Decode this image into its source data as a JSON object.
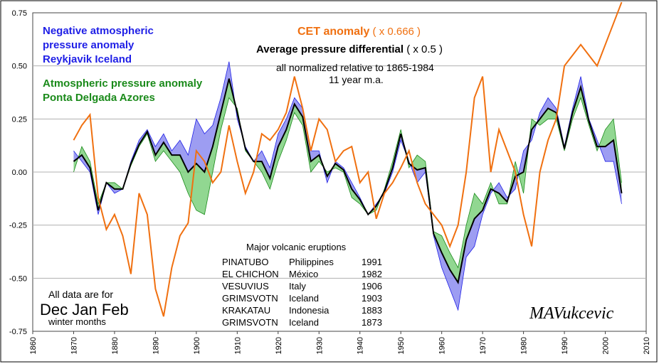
{
  "labels": {
    "reykjavik_1": "Negative atmospheric",
    "reykjavik_2": "pressure anomaly",
    "reykjavik_3": "Reykjavik Iceland",
    "azores_1": "Atmospheric pressure anomaly",
    "azores_2": "Ponta Delgada Azores",
    "cet": "CET anomaly",
    "cet_scale": "  ( x 0.666 )",
    "differential": "Average pressure differential",
    "differential_scale": " ( x 0.5 )",
    "normalized": "all normalized relative to 1865-1984",
    "moving_average": "11 year m.a.",
    "note_1": "All data are for",
    "note_2": "Dec Jan Feb",
    "note_3": "winter months",
    "author": "MAVukcevic"
  },
  "volcanoes": {
    "title": "Major volcanic eruptions",
    "rows": [
      [
        "PINATUBO",
        "Philippines",
        "1991"
      ],
      [
        "EL CHICHON",
        "México",
        "1982"
      ],
      [
        "VESUVIUS",
        "Italy",
        "1906"
      ],
      [
        "GRIMSVOTN",
        "Iceland",
        "1903"
      ],
      [
        "KRAKATAU",
        "Indonesia",
        "1883"
      ],
      [
        "GRIMSVOTN",
        "Iceland",
        "1873"
      ]
    ]
  },
  "colors": {
    "cet": "#f07010",
    "reykjavik": "#8c8cf0",
    "reykjavik_edge": "#1f1fe6",
    "azores": "#7ed07e",
    "azores_edge": "#1a8a1a",
    "average": "#000000",
    "grid": "#b0b0b0"
  },
  "chart_data": {
    "type": "line",
    "xlim": [
      1860,
      2010
    ],
    "ylim": [
      -0.75,
      0.75
    ],
    "x_ticks": [
      1860,
      1870,
      1880,
      1890,
      1900,
      1910,
      1920,
      1930,
      1940,
      1950,
      1960,
      1970,
      1980,
      1990,
      2000,
      2010
    ],
    "y_ticks": [
      "0.75",
      "0.50",
      "0.25",
      "0.00",
      "-0.25",
      "-0.50",
      "-0.75"
    ],
    "grid": "horizontal",
    "series": [
      {
        "name": "CET anomaly ( x 0.666 )",
        "x": [
          1870,
          1872,
          1874,
          1876,
          1878,
          1880,
          1882,
          1884,
          1886,
          1888,
          1890,
          1892,
          1894,
          1896,
          1898,
          1900,
          1902,
          1904,
          1906,
          1908,
          1910,
          1912,
          1914,
          1916,
          1918,
          1920,
          1922,
          1924,
          1926,
          1928,
          1930,
          1932,
          1934,
          1936,
          1938,
          1940,
          1942,
          1944,
          1946,
          1948,
          1950,
          1952,
          1954,
          1956,
          1958,
          1960,
          1962,
          1964,
          1966,
          1968,
          1970,
          1972,
          1974,
          1976,
          1978,
          1980,
          1982,
          1984,
          1986,
          1988,
          1990,
          1992,
          1994,
          1996,
          1998,
          2000,
          2002,
          2004
        ],
        "y": [
          0.15,
          0.22,
          0.27,
          -0.12,
          -0.27,
          -0.2,
          -0.3,
          -0.48,
          -0.1,
          -0.2,
          -0.55,
          -0.68,
          -0.45,
          -0.3,
          -0.24,
          0.1,
          0.05,
          -0.05,
          0.0,
          0.22,
          0.05,
          -0.1,
          0.0,
          0.18,
          0.15,
          0.2,
          0.28,
          0.45,
          0.3,
          0.1,
          0.25,
          0.2,
          0.05,
          0.1,
          0.12,
          -0.05,
          0.0,
          -0.22,
          -0.1,
          -0.05,
          0.02,
          0.1,
          -0.05,
          -0.15,
          -0.2,
          -0.25,
          -0.35,
          -0.25,
          0.0,
          0.35,
          0.45,
          0.0,
          0.2,
          0.1,
          0.0,
          -0.2,
          -0.35,
          0.0,
          0.15,
          0.25,
          0.5,
          0.55,
          0.6,
          0.55,
          0.5,
          0.6,
          0.7,
          0.8
        ]
      },
      {
        "name": "Negative atmospheric pressure anomaly Reykjavik Iceland",
        "x": [
          1870,
          1872,
          1874,
          1876,
          1878,
          1880,
          1882,
          1884,
          1886,
          1888,
          1890,
          1892,
          1894,
          1896,
          1898,
          1900,
          1902,
          1904,
          1906,
          1908,
          1910,
          1912,
          1914,
          1916,
          1918,
          1920,
          1922,
          1924,
          1926,
          1928,
          1930,
          1932,
          1934,
          1936,
          1938,
          1940,
          1942,
          1944,
          1946,
          1948,
          1950,
          1952,
          1954,
          1956,
          1958,
          1960,
          1962,
          1964,
          1966,
          1968,
          1970,
          1972,
          1974,
          1976,
          1978,
          1980,
          1982,
          1984,
          1986,
          1988,
          1990,
          1992,
          1994,
          1996,
          1998,
          2000,
          2002,
          2004
        ],
        "y": [
          0.1,
          0.05,
          0.0,
          -0.2,
          -0.05,
          -0.1,
          -0.08,
          0.05,
          0.15,
          0.2,
          0.12,
          0.18,
          0.1,
          0.15,
          0.08,
          0.25,
          0.18,
          0.22,
          0.35,
          0.52,
          0.25,
          0.12,
          0.05,
          0.1,
          0.02,
          0.18,
          0.25,
          0.35,
          0.3,
          0.1,
          0.1,
          -0.05,
          0.05,
          0.02,
          -0.05,
          -0.12,
          -0.2,
          -0.15,
          -0.1,
          0.0,
          0.15,
          0.05,
          -0.05,
          0.0,
          -0.3,
          -0.45,
          -0.55,
          -0.65,
          -0.4,
          -0.35,
          -0.2,
          -0.1,
          -0.05,
          -0.12,
          -0.08,
          0.1,
          0.15,
          0.28,
          0.35,
          0.3,
          0.12,
          0.3,
          0.45,
          0.25,
          0.15,
          0.05,
          0.05,
          -0.15
        ]
      },
      {
        "name": "Atmospheric pressure anomaly Ponta Delgada Azores",
        "x": [
          1870,
          1872,
          1874,
          1876,
          1878,
          1880,
          1882,
          1884,
          1886,
          1888,
          1890,
          1892,
          1894,
          1896,
          1898,
          1900,
          1902,
          1904,
          1906,
          1908,
          1910,
          1912,
          1914,
          1916,
          1918,
          1920,
          1922,
          1924,
          1926,
          1928,
          1930,
          1932,
          1934,
          1936,
          1938,
          1940,
          1942,
          1944,
          1946,
          1948,
          1950,
          1952,
          1954,
          1956,
          1958,
          1960,
          1962,
          1964,
          1966,
          1968,
          1970,
          1972,
          1974,
          1976,
          1978,
          1980,
          1982,
          1984,
          1986,
          1988,
          1990,
          1992,
          1994,
          1996,
          1998,
          2000,
          2002,
          2004
        ],
        "y": [
          0.0,
          0.12,
          0.05,
          -0.15,
          -0.05,
          -0.05,
          -0.08,
          0.03,
          0.12,
          0.18,
          0.05,
          0.1,
          0.05,
          0.0,
          -0.1,
          -0.18,
          -0.2,
          0.0,
          0.2,
          0.35,
          0.3,
          0.1,
          0.05,
          0.0,
          -0.08,
          0.05,
          0.15,
          0.28,
          0.22,
          0.0,
          0.05,
          0.0,
          0.02,
          0.0,
          -0.12,
          -0.15,
          -0.2,
          -0.18,
          -0.08,
          0.05,
          0.2,
          0.02,
          0.08,
          0.05,
          -0.28,
          -0.3,
          -0.38,
          -0.45,
          -0.25,
          -0.1,
          -0.15,
          -0.05,
          -0.15,
          -0.15,
          0.05,
          -0.1,
          0.25,
          0.22,
          0.25,
          0.25,
          0.1,
          0.25,
          0.35,
          0.22,
          0.1,
          0.2,
          0.25,
          -0.05
        ]
      },
      {
        "name": "Average pressure differential ( x 0.5 )",
        "x": [
          1870,
          1872,
          1874,
          1876,
          1878,
          1880,
          1882,
          1884,
          1886,
          1888,
          1890,
          1892,
          1894,
          1896,
          1898,
          1900,
          1902,
          1904,
          1906,
          1908,
          1910,
          1912,
          1914,
          1916,
          1918,
          1920,
          1922,
          1924,
          1926,
          1928,
          1930,
          1932,
          1934,
          1936,
          1938,
          1940,
          1942,
          1944,
          1946,
          1948,
          1950,
          1952,
          1954,
          1956,
          1958,
          1960,
          1962,
          1964,
          1966,
          1968,
          1970,
          1972,
          1974,
          1976,
          1978,
          1980,
          1982,
          1984,
          1986,
          1988,
          1990,
          1992,
          1994,
          1996,
          1998,
          2000,
          2002,
          2004
        ],
        "y": [
          0.05,
          0.08,
          0.02,
          -0.18,
          -0.05,
          -0.08,
          -0.08,
          0.04,
          0.13,
          0.19,
          0.08,
          0.14,
          0.08,
          0.08,
          0.0,
          0.04,
          0.0,
          0.12,
          0.28,
          0.44,
          0.28,
          0.11,
          0.05,
          0.05,
          -0.03,
          0.12,
          0.2,
          0.32,
          0.26,
          0.05,
          0.08,
          -0.02,
          0.04,
          0.01,
          -0.08,
          -0.13,
          -0.2,
          -0.16,
          -0.09,
          0.02,
          0.18,
          0.04,
          0.01,
          0.02,
          -0.29,
          -0.38,
          -0.46,
          -0.52,
          -0.32,
          -0.22,
          -0.18,
          -0.08,
          -0.1,
          -0.14,
          -0.02,
          0.0,
          0.2,
          0.25,
          0.3,
          0.28,
          0.11,
          0.28,
          0.4,
          0.24,
          0.12,
          0.12,
          0.15,
          -0.1
        ]
      }
    ]
  }
}
